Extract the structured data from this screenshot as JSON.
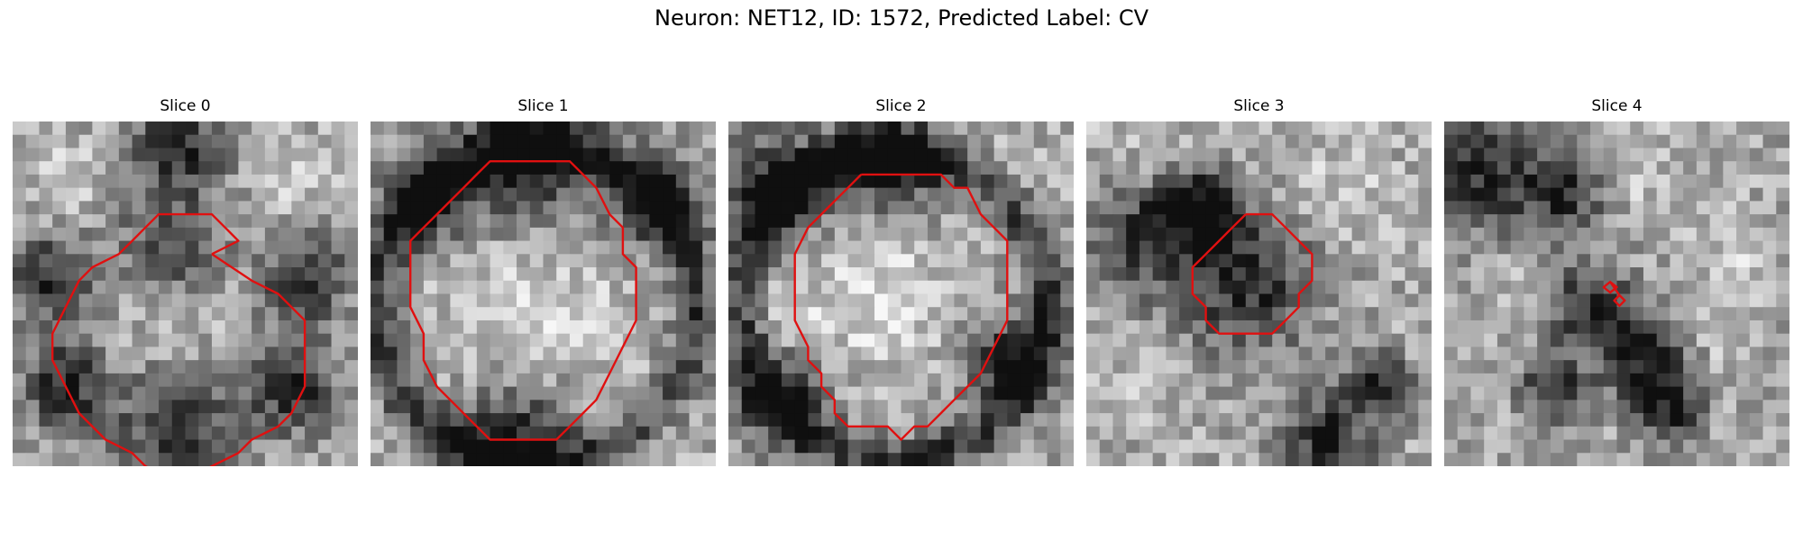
{
  "figure": {
    "title": "Neuron: NET12, ID: 1572, Predicted Label: CV"
  },
  "colors": {
    "contour": "#e01010",
    "background": "#ffffff"
  },
  "panels": [
    {
      "title": "Slice 0",
      "dark": [
        [
          12.5,
          2,
          3,
          3.2
        ],
        [
          12,
          10,
          4,
          2.6
        ],
        [
          3,
          12,
          3,
          2.2
        ],
        [
          22,
          12,
          3,
          2.2
        ],
        [
          12.5,
          23.5,
          4,
          2.8
        ],
        [
          4,
          20,
          3,
          2.4
        ],
        [
          21,
          20,
          3,
          2.4
        ]
      ],
      "light": [
        [
          12.5,
          12,
          5.5,
          0.9
        ],
        [
          4,
          4,
          3,
          0.6
        ],
        [
          21,
          4,
          3,
          0.6
        ]
      ],
      "contour": [
        [
          15,
          10
        ],
        [
          18,
          12
        ],
        [
          20,
          13
        ],
        [
          22,
          15
        ],
        [
          22,
          20
        ],
        [
          21,
          22
        ],
        [
          20,
          23
        ],
        [
          18,
          24
        ],
        [
          17,
          25
        ],
        [
          15,
          26
        ],
        [
          13,
          27
        ],
        [
          12,
          27
        ],
        [
          10,
          26
        ],
        [
          9,
          25
        ],
        [
          7,
          24
        ],
        [
          5,
          22
        ],
        [
          4,
          20
        ],
        [
          3,
          18
        ],
        [
          3,
          16
        ],
        [
          4,
          14
        ],
        [
          5,
          12
        ],
        [
          6,
          11
        ],
        [
          8,
          10
        ],
        [
          9,
          9
        ],
        [
          10,
          8
        ],
        [
          11,
          7
        ],
        [
          13,
          7
        ],
        [
          15,
          7
        ],
        [
          16,
          8
        ],
        [
          17,
          9
        ],
        [
          15,
          10
        ]
      ]
    },
    {
      "title": "Slice 1",
      "dark": [
        [
          12,
          3,
          5,
          3
        ],
        [
          12.5,
          14,
          12,
          1.8
        ],
        [
          11,
          24,
          4,
          2.4
        ],
        [
          4,
          6,
          3,
          2
        ],
        [
          22,
          6,
          3,
          2
        ]
      ],
      "light": [
        [
          12,
          14,
          6.5,
          0.9
        ],
        [
          21,
          22,
          3,
          0.6
        ]
      ],
      "contour": [
        [
          10,
          3
        ],
        [
          13,
          3
        ],
        [
          15,
          3
        ],
        [
          16,
          4
        ],
        [
          17,
          5
        ],
        [
          18,
          7
        ],
        [
          19,
          8
        ],
        [
          19,
          10
        ],
        [
          20,
          11
        ],
        [
          20,
          15
        ],
        [
          19,
          17
        ],
        [
          18,
          19
        ],
        [
          17,
          21
        ],
        [
          16,
          22
        ],
        [
          15,
          23
        ],
        [
          14,
          24
        ],
        [
          12,
          24
        ],
        [
          10,
          24
        ],
        [
          9,
          24
        ],
        [
          8,
          23
        ],
        [
          7,
          22
        ],
        [
          5,
          20
        ],
        [
          4,
          18
        ],
        [
          4,
          16
        ],
        [
          3,
          14
        ],
        [
          3,
          9
        ],
        [
          4,
          8
        ],
        [
          5,
          7
        ],
        [
          6,
          6
        ],
        [
          7,
          5
        ],
        [
          8,
          4
        ],
        [
          9,
          3
        ],
        [
          10,
          3
        ]
      ]
    },
    {
      "title": "Slice 2",
      "dark": [
        [
          3,
          5,
          4,
          2.8
        ],
        [
          12,
          3,
          4,
          2.5
        ],
        [
          4,
          21,
          3,
          2.2
        ],
        [
          12.5,
          14,
          11.5,
          1.8
        ],
        [
          21,
          18,
          3,
          2
        ]
      ],
      "light": [
        [
          11,
          13,
          6,
          0.9
        ],
        [
          20,
          4,
          3,
          0.6
        ],
        [
          4,
          14,
          2,
          0.6
        ]
      ],
      "contour": [
        [
          10,
          4
        ],
        [
          13,
          4
        ],
        [
          16,
          4
        ],
        [
          17,
          5
        ],
        [
          18,
          5
        ],
        [
          19,
          7
        ],
        [
          20,
          8
        ],
        [
          21,
          9
        ],
        [
          21,
          10
        ],
        [
          21,
          15
        ],
        [
          20,
          17
        ],
        [
          19,
          19
        ],
        [
          18,
          20
        ],
        [
          17,
          21
        ],
        [
          16,
          22
        ],
        [
          15,
          23
        ],
        [
          14,
          23
        ],
        [
          13,
          24
        ],
        [
          12,
          23
        ],
        [
          11,
          23
        ],
        [
          9,
          23
        ],
        [
          8,
          22
        ],
        [
          8,
          21
        ],
        [
          7,
          20
        ],
        [
          7,
          19
        ],
        [
          6,
          18
        ],
        [
          6,
          17
        ],
        [
          5,
          15
        ],
        [
          5,
          12
        ],
        [
          5,
          10
        ],
        [
          6,
          8
        ],
        [
          7,
          7
        ],
        [
          8,
          6
        ],
        [
          9,
          5
        ],
        [
          10,
          4
        ],
        [
          10,
          4
        ]
      ]
    },
    {
      "title": "Slice 3",
      "dark": [
        [
          12,
          12,
          5,
          2.6
        ],
        [
          5,
          8,
          4,
          2.6
        ],
        [
          9,
          6,
          2,
          2
        ],
        [
          18,
          24,
          3,
          2.6
        ],
        [
          22,
          20,
          2,
          2
        ]
      ],
      "light": [
        [
          4,
          3,
          4,
          0.6
        ],
        [
          19,
          5,
          4,
          0.6
        ],
        [
          4,
          20,
          3,
          0.5
        ]
      ],
      "contour": [
        [
          12,
          7
        ],
        [
          14,
          7
        ],
        [
          15,
          8
        ],
        [
          16,
          9
        ],
        [
          17,
          10
        ],
        [
          17,
          11
        ],
        [
          17,
          12
        ],
        [
          16,
          13
        ],
        [
          16,
          14
        ],
        [
          15,
          15
        ],
        [
          14,
          16
        ],
        [
          12,
          16
        ],
        [
          10,
          16
        ],
        [
          9,
          15
        ],
        [
          9,
          14
        ],
        [
          8,
          13
        ],
        [
          8,
          12
        ],
        [
          8,
          11
        ],
        [
          9,
          10
        ],
        [
          10,
          9
        ],
        [
          11,
          8
        ],
        [
          12,
          7
        ]
      ]
    },
    {
      "title": "Slice 4",
      "dark": [
        [
          2,
          4,
          4,
          2.6
        ],
        [
          9,
          5,
          3,
          2.2
        ],
        [
          11,
          14,
          3,
          2
        ],
        [
          15,
          18,
          3,
          2
        ],
        [
          8,
          20,
          2,
          2
        ],
        [
          17,
          22,
          2,
          2
        ]
      ],
      "light": [
        [
          14,
          4,
          3,
          0.6
        ],
        [
          22,
          10,
          3,
          0.6
        ],
        [
          6,
          12,
          2,
          0.6
        ],
        [
          21,
          16,
          2,
          0.6
        ]
      ],
      "contour": [
        [
          12.5,
          12.1
        ],
        [
          13,
          12.5
        ],
        [
          12.5,
          12.9
        ],
        [
          12,
          12.5
        ],
        [
          12.5,
          12.1
        ],
        [
          13.2,
          13.1
        ],
        [
          13.6,
          13.5
        ],
        [
          13.2,
          13.9
        ],
        [
          12.8,
          13.5
        ],
        [
          13.2,
          13.1
        ]
      ]
    }
  ]
}
